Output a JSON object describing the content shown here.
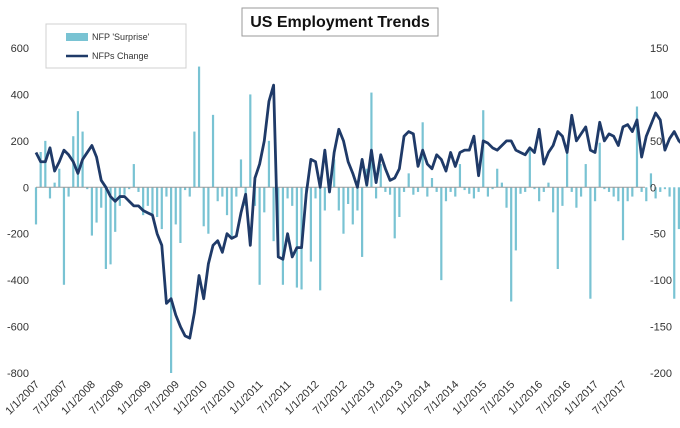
{
  "chart_data": {
    "type": "bar",
    "title": "US Employment Trends",
    "legend_position": "top-left",
    "grid": false,
    "colors": {
      "bars": "#79c3d3",
      "line": "#1f3a68",
      "background": "#ffffff"
    },
    "x_tick_labels": [
      "1/1/2007",
      "7/1/2007",
      "1/1/2008",
      "7/1/2008",
      "1/1/2009",
      "7/1/2009",
      "1/1/2010",
      "7/1/2010",
      "1/1/2011",
      "7/1/2011",
      "1/1/2012",
      "7/1/2012",
      "1/1/2013",
      "7/1/2013",
      "1/1/2014",
      "7/1/2014",
      "1/1/2015",
      "7/1/2015",
      "1/1/2016",
      "7/1/2016",
      "1/1/2017",
      "7/1/2017"
    ],
    "y_left": {
      "ticks": [
        600,
        400,
        200,
        0,
        -200,
        -400,
        -600,
        -800
      ],
      "ylim": [
        -800,
        600
      ]
    },
    "y_right": {
      "ticks": [
        150,
        100,
        50,
        0,
        -50,
        -100,
        -150,
        -200
      ],
      "ylim": [
        -200,
        150
      ]
    },
    "series": [
      {
        "name": "NFP 'Surprise'",
        "kind": "bar",
        "axis": "right",
        "x_start": "1/1/2007",
        "step": "month",
        "values": [
          -40,
          38,
          50,
          -12,
          5,
          20,
          -105,
          -10,
          55,
          82,
          60,
          -2,
          -52,
          -38,
          -22,
          -88,
          -83,
          -48,
          -20,
          -8,
          -2,
          25,
          -5,
          -30,
          -20,
          -30,
          -32,
          -45,
          -10,
          -200,
          -40,
          -60,
          -3,
          -10,
          60,
          130,
          -42,
          -50,
          78,
          -15,
          -10,
          -30,
          -55,
          -10,
          30,
          -20,
          100,
          -20,
          -105,
          -27,
          50,
          -58,
          -67,
          -105,
          -12,
          -20,
          -108,
          -110,
          -5,
          -80,
          -12,
          -111,
          -25,
          -5,
          30,
          -25,
          -50,
          -18,
          -40,
          -25,
          -75,
          20,
          102,
          -12,
          25,
          -5,
          -8,
          -55,
          -32,
          -5,
          15,
          -8,
          -5,
          70,
          -10,
          10,
          -5,
          -100,
          -15,
          -5,
          -10,
          25,
          -3,
          -7,
          -12,
          -5,
          83,
          -10,
          -2,
          20,
          5,
          -22,
          -123,
          -68,
          -7,
          -5,
          40,
          -2,
          -15,
          -5,
          5,
          -27,
          -88,
          -20,
          40,
          -5,
          -22,
          -10,
          25,
          -120,
          -15,
          48,
          -2,
          -5,
          -10,
          -15,
          -57,
          -15,
          -10,
          87,
          -5,
          -15,
          15,
          -12,
          -5,
          -2,
          -10,
          -120,
          -45,
          108,
          75,
          -35,
          -5,
          -22,
          -15,
          5,
          -5,
          5,
          -2,
          -20,
          40,
          -82,
          -60,
          -5,
          -5,
          -80,
          -43,
          45,
          28
        ],
        "color": "#79c3d3"
      },
      {
        "name": "NFPs Change",
        "kind": "line",
        "axis": "left",
        "x_start": "1/1/2007",
        "step": "month",
        "values": [
          150,
          110,
          110,
          170,
          70,
          110,
          160,
          140,
          110,
          60,
          120,
          150,
          180,
          130,
          30,
          0,
          -40,
          -60,
          -40,
          -40,
          -60,
          -80,
          -80,
          -100,
          -110,
          -120,
          -200,
          -250,
          -500,
          -480,
          -550,
          -600,
          -640,
          -650,
          -540,
          -380,
          -480,
          -330,
          -250,
          -230,
          -280,
          -200,
          -220,
          -210,
          -110,
          -30,
          -250,
          40,
          100,
          200,
          370,
          440,
          -300,
          -310,
          -200,
          -300,
          -260,
          -260,
          -30,
          120,
          110,
          0,
          160,
          -20,
          150,
          250,
          200,
          110,
          60,
          0,
          120,
          10,
          160,
          20,
          140,
          80,
          30,
          40,
          80,
          220,
          240,
          230,
          90,
          160,
          100,
          80,
          140,
          120,
          70,
          150,
          90,
          150,
          160,
          160,
          220,
          50,
          200,
          190,
          170,
          160,
          180,
          200,
          200,
          160,
          150,
          140,
          170,
          150,
          250,
          100,
          150,
          180,
          240,
          220,
          150,
          310,
          200,
          230,
          260,
          160,
          150,
          280,
          200,
          230,
          220,
          180,
          260,
          270,
          240,
          290,
          130,
          220,
          270,
          320,
          290,
          160,
          210,
          240,
          200,
          180,
          140,
          170,
          210,
          160,
          100,
          140,
          180,
          230,
          200,
          180,
          210,
          150,
          160,
          140,
          150,
          120,
          150,
          210,
          240,
          250,
          160,
          180,
          170,
          80,
          140,
          120,
          200,
          210,
          220,
          200
        ]
      }
    ]
  }
}
